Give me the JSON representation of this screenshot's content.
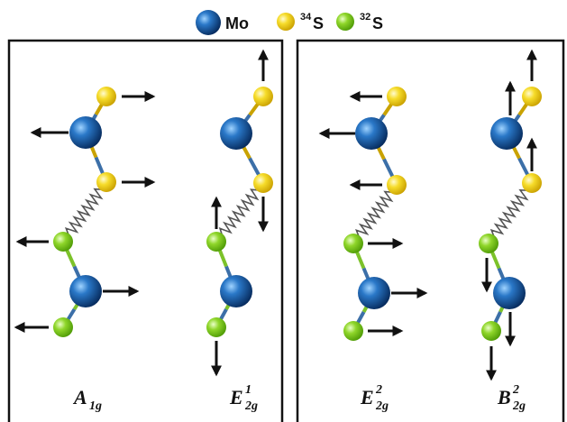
{
  "legend": {
    "items": [
      {
        "label": "Mo"
      },
      {
        "sup": "34",
        "label": "S"
      },
      {
        "sup": "32",
        "label": "S"
      }
    ]
  },
  "modes": [
    {
      "base": "A",
      "sub": "1g"
    },
    {
      "base": "E",
      "sub": "2g",
      "sup": "1"
    },
    {
      "base": "E",
      "sub": "2g",
      "sup": "2"
    },
    {
      "base": "B",
      "sub": "2g",
      "sup": "2"
    }
  ]
}
